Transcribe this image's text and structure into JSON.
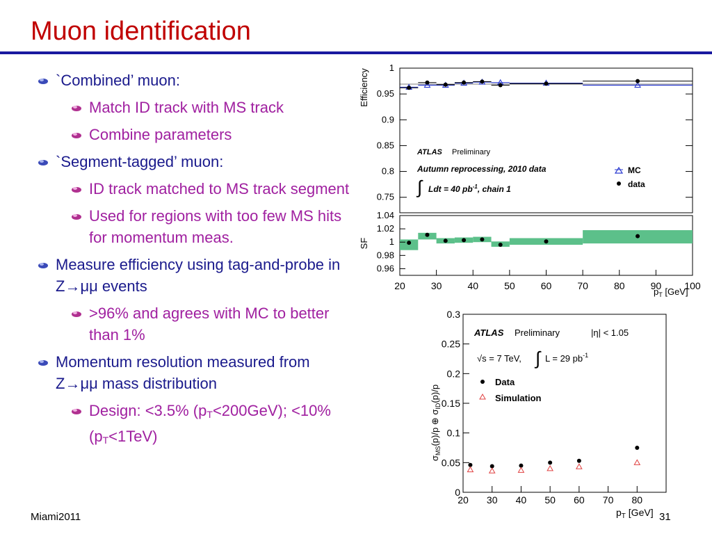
{
  "slide": {
    "title": "Muon identification",
    "footer_left": "Miami2011",
    "page_number": "31",
    "bullets": [
      {
        "level": 1,
        "text": "`Combined’ muon:"
      },
      {
        "level": 2,
        "text": "Match ID track with MS track"
      },
      {
        "level": 2,
        "text": "Combine parameters"
      },
      {
        "level": 1,
        "text": "`Segment-tagged’ muon:"
      },
      {
        "level": 2,
        "text": "ID track matched to MS track segment"
      },
      {
        "level": 2,
        "text": "Used for regions with too few MS hits for momentum meas."
      },
      {
        "level": 1,
        "text": "Measure efficiency using tag-and-probe in Z→μμ events"
      },
      {
        "level": 2,
        "text": ">96% and agrees with MC to better than 1%"
      },
      {
        "level": 1,
        "text": "Momentum resolution measured from Z→μμ mass distribution"
      },
      {
        "level": 2,
        "text_parts": [
          "Design: <3.5% (p",
          "T",
          "<200GeV); <10% (p",
          "T",
          "<1TeV)"
        ]
      }
    ]
  },
  "colors": {
    "title": "#c00000",
    "rule": "#1a1aa0",
    "level1": "#1a1a8c",
    "level2": "#a020a0",
    "sf_band": "#5cc08a",
    "mc": "#2a3ad0",
    "sim": "#e04040"
  },
  "chart_data": [
    {
      "type": "scatter",
      "panel": "efficiency",
      "ylabel": "Efficiency",
      "ylim": [
        0.72,
        1.0
      ],
      "xlim": [
        20,
        100
      ],
      "yticks": [
        0.75,
        0.8,
        0.85,
        0.9,
        0.95,
        1
      ],
      "ytick_labels": [
        "0.75",
        "0.8",
        "0.85",
        "0.9",
        "0.95",
        "1"
      ],
      "annotations": [
        "ATLAS",
        "Preliminary",
        "Autumn reprocessing, 2010 data",
        "Ldt = 40 pb",
        "-1",
        ", chain 1"
      ],
      "series": [
        {
          "name": "MC",
          "x": [
            22.5,
            27.5,
            32.5,
            37.5,
            42.5,
            47.5,
            60,
            85
          ],
          "y": [
            0.963,
            0.967,
            0.967,
            0.971,
            0.973,
            0.972,
            0.971,
            0.967
          ]
        },
        {
          "name": "data",
          "x": [
            22.5,
            27.5,
            32.5,
            37.5,
            42.5,
            47.5,
            60,
            85
          ],
          "y": [
            0.962,
            0.972,
            0.968,
            0.972,
            0.974,
            0.967,
            0.97,
            0.975
          ]
        }
      ]
    },
    {
      "type": "scatter",
      "panel": "scale-factor",
      "ylabel": "SF",
      "xlabel": "p",
      "xlabel_sub": "T",
      "xlabel_unit": " [GeV]",
      "xlim": [
        20,
        100
      ],
      "ylim": [
        0.95,
        1.04
      ],
      "xticks": [
        20,
        30,
        40,
        50,
        60,
        70,
        80,
        90,
        100
      ],
      "xtick_labels": [
        "20",
        "30",
        "40",
        "50",
        "60",
        "70",
        "80",
        "90",
        "100"
      ],
      "yticks": [
        0.96,
        0.98,
        1,
        1.02,
        1.04
      ],
      "ytick_labels": [
        "0.96",
        "0.98",
        "1",
        "1.02",
        "1.04"
      ],
      "series": [
        {
          "name": "SF",
          "x": [
            22.5,
            27.5,
            32.5,
            37.5,
            42.5,
            47.5,
            60,
            85
          ],
          "y": [
            0.999,
            1.011,
            1.002,
            1.003,
            1.004,
            0.996,
            1.001,
            1.009
          ]
        }
      ],
      "band": [
        {
          "x0": 20,
          "x1": 25,
          "lo": 0.988,
          "hi": 1.004
        },
        {
          "x0": 25,
          "x1": 30,
          "lo": 1.004,
          "hi": 1.014
        },
        {
          "x0": 30,
          "x1": 35,
          "lo": 0.998,
          "hi": 1.006
        },
        {
          "x0": 35,
          "x1": 40,
          "lo": 0.999,
          "hi": 1.007
        },
        {
          "x0": 40,
          "x1": 45,
          "lo": 1.0,
          "hi": 1.008
        },
        {
          "x0": 45,
          "x1": 50,
          "lo": 0.993,
          "hi": 1.001
        },
        {
          "x0": 50,
          "x1": 70,
          "lo": 0.996,
          "hi": 1.006
        },
        {
          "x0": 70,
          "x1": 100,
          "lo": 0.998,
          "hi": 1.018
        }
      ]
    },
    {
      "type": "scatter",
      "panel": "resolution",
      "ylabel_parts": [
        "σ",
        "MS",
        "(p)/p  ⊕  σ",
        "ID",
        "(p)/p"
      ],
      "xlabel": "p",
      "xlabel_sub": "T",
      "xlabel_unit": " [GeV]",
      "xlim": [
        20,
        90
      ],
      "ylim": [
        0,
        0.3
      ],
      "xticks": [
        20,
        30,
        40,
        50,
        60,
        70,
        80
      ],
      "xtick_labels": [
        "20",
        "30",
        "40",
        "50",
        "60",
        "70",
        "80"
      ],
      "yticks": [
        0,
        0.05,
        0.1,
        0.15,
        0.2,
        0.25,
        0.3
      ],
      "ytick_labels": [
        "0",
        "0.05",
        "0.1",
        "0.15",
        "0.2",
        "0.25",
        "0.3"
      ],
      "annotations": [
        "ATLAS",
        "Preliminary",
        "|η| < 1.05",
        "√s = 7 TeV,",
        "L = 29 pb",
        "-1"
      ],
      "series": [
        {
          "name": "Data",
          "x": [
            22.5,
            30,
            40,
            50,
            60,
            80
          ],
          "y": [
            0.046,
            0.044,
            0.045,
            0.05,
            0.053,
            0.075
          ]
        },
        {
          "name": "Simulation",
          "x": [
            22.5,
            30,
            40,
            50,
            60,
            80
          ],
          "y": [
            0.038,
            0.036,
            0.037,
            0.04,
            0.043,
            0.05
          ]
        }
      ]
    }
  ]
}
